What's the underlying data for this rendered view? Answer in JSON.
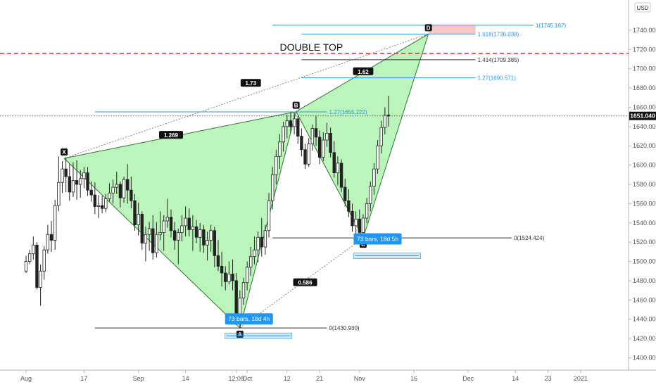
{
  "chart_data": {
    "type": "candlestick",
    "currency": "USD",
    "current_price": "1651.040",
    "price_ticks": [
      1400.0,
      1420.0,
      1440.0,
      1460.0,
      1480.0,
      1500.0,
      1520.0,
      1540.0,
      1560.0,
      1580.0,
      1600.0,
      1620.0,
      1640.0,
      1660.0,
      1680.0,
      1700.0,
      1720.0,
      1740.0
    ],
    "price_tick_labels": [
      "1400.000",
      "1420.000",
      "1440.000",
      "1460.000",
      "1480.000",
      "1500.000",
      "1520.000",
      "1540.000",
      "1560.000",
      "1580.000",
      "1600.000",
      "1620.000",
      "1640.000",
      "1660.000",
      "1680.000",
      "1700.000",
      "1720.000",
      "1740.000"
    ],
    "time_ticks": [
      {
        "label": "Aug",
        "day": 0
      },
      {
        "label": "17",
        "day": 16
      },
      {
        "label": "Sep",
        "day": 31
      },
      {
        "label": "14",
        "day": 44
      },
      {
        "label": "12:00",
        "day": 58
      },
      {
        "label": "Oct",
        "day": 61
      },
      {
        "label": "12",
        "day": 72
      },
      {
        "label": "21",
        "day": 81
      },
      {
        "label": "Nov",
        "day": 92
      },
      {
        "label": "16",
        "day": 107
      },
      {
        "label": "Dec",
        "day": 122
      },
      {
        "label": "14",
        "day": 135
      },
      {
        "label": "23",
        "day": 144
      },
      {
        "label": "2021",
        "day": 153
      }
    ],
    "annotation_title": "DOUBLE TOP",
    "double_top_price": 1716,
    "pattern_points": [
      {
        "name": "X",
        "day": 10.5,
        "price": 1607
      },
      {
        "name": "A",
        "day": 59,
        "price": 1431
      },
      {
        "name": "B",
        "day": 74.5,
        "price": 1655.5
      },
      {
        "name": "C",
        "day": 93,
        "price": 1524.4
      },
      {
        "name": "D",
        "day": 111,
        "price": 1736
      }
    ],
    "ratios": [
      {
        "label": "1.269",
        "day": 40,
        "price": 1631
      },
      {
        "label": "0.586",
        "day": 77,
        "price": 1478
      },
      {
        "label": "1.62",
        "day": 93,
        "price": 1697
      },
      {
        "label": "1.73",
        "day": 62,
        "price": 1685
      }
    ],
    "fib_levels": [
      {
        "label": "1(1745.167)",
        "price": 1745.167,
        "start": 68,
        "end": 140,
        "color": "blue"
      },
      {
        "label": "1.618(1736.038)",
        "price": 1736.038,
        "start": 76,
        "end": 124,
        "color": "blue"
      },
      {
        "label": "1.414(1709.385)",
        "price": 1709.385,
        "start": 76,
        "end": 124,
        "color": "dark"
      },
      {
        "label": "1.27(1690.571)",
        "price": 1690.571,
        "start": 76,
        "end": 124,
        "color": "blue"
      },
      {
        "label": "1.27(1655.222)",
        "price": 1655.222,
        "start": 19,
        "end": 83,
        "color": "blue"
      },
      {
        "label": "0(1524.424)",
        "price": 1524.424,
        "start": 68,
        "end": 134,
        "color": "dark"
      },
      {
        "label": "0(1430.930)",
        "price": 1430.93,
        "start": 19,
        "end": 83,
        "color": "dark"
      }
    ],
    "bar_boxes": [
      {
        "label": "73 bars, 18d 4h",
        "day": 61.5,
        "price": 1436
      },
      {
        "label": "73 bars, 18d 5h",
        "day": 97,
        "price": 1519
      }
    ],
    "candles": [
      [
        0,
        1490,
        1506,
        1488,
        1500
      ],
      [
        1,
        1500,
        1512,
        1497,
        1508
      ],
      [
        2,
        1508,
        1526,
        1502,
        1517
      ],
      [
        3,
        1517,
        1520,
        1471,
        1473
      ],
      [
        4,
        1473,
        1497,
        1454,
        1490
      ],
      [
        5,
        1490,
        1516,
        1481,
        1512
      ],
      [
        6,
        1512,
        1538,
        1508,
        1528
      ],
      [
        7,
        1528,
        1542,
        1510,
        1522
      ],
      [
        8,
        1522,
        1564,
        1512,
        1558
      ],
      [
        9,
        1558,
        1609,
        1552,
        1582
      ],
      [
        10,
        1582,
        1604,
        1571,
        1596
      ],
      [
        11,
        1596,
        1608,
        1572,
        1588
      ],
      [
        12,
        1588,
        1601,
        1563,
        1572
      ],
      [
        13,
        1572,
        1603,
        1567,
        1584
      ],
      [
        14,
        1584,
        1605,
        1564,
        1580
      ],
      [
        15,
        1580,
        1595,
        1566,
        1586
      ],
      [
        16,
        1586,
        1598,
        1576,
        1592
      ],
      [
        17,
        1592,
        1598,
        1568,
        1574
      ],
      [
        18,
        1574,
        1583,
        1562,
        1569
      ],
      [
        19,
        1569,
        1582,
        1549,
        1557
      ],
      [
        20,
        1557,
        1569,
        1545,
        1558
      ],
      [
        21,
        1558,
        1568,
        1550,
        1555
      ],
      [
        22,
        1555,
        1570,
        1551,
        1565
      ],
      [
        23,
        1565,
        1581,
        1562,
        1571
      ],
      [
        24,
        1571,
        1585,
        1560,
        1577
      ],
      [
        25,
        1577,
        1593,
        1570,
        1580
      ],
      [
        26,
        1580,
        1583,
        1556,
        1566
      ],
      [
        27,
        1566,
        1588,
        1561,
        1585
      ],
      [
        28,
        1585,
        1601,
        1560,
        1574
      ],
      [
        29,
        1574,
        1588,
        1555,
        1563
      ],
      [
        30,
        1563,
        1570,
        1532,
        1538
      ],
      [
        31,
        1538,
        1561,
        1527,
        1549
      ],
      [
        32,
        1549,
        1552,
        1512,
        1519
      ],
      [
        33,
        1519,
        1536,
        1500,
        1528
      ],
      [
        34,
        1528,
        1541,
        1511,
        1534
      ],
      [
        35,
        1534,
        1548,
        1502,
        1509
      ],
      [
        36,
        1509,
        1541,
        1504,
        1528
      ],
      [
        37,
        1528,
        1552,
        1522,
        1530
      ],
      [
        38,
        1530,
        1548,
        1511,
        1542
      ],
      [
        39,
        1542,
        1565,
        1535,
        1546
      ],
      [
        40,
        1546,
        1554,
        1525,
        1532
      ],
      [
        41,
        1532,
        1541,
        1512,
        1522
      ],
      [
        42,
        1522,
        1534,
        1497,
        1530
      ],
      [
        43,
        1530,
        1548,
        1521,
        1537
      ],
      [
        44,
        1537,
        1557,
        1526,
        1545
      ],
      [
        45,
        1545,
        1555,
        1526,
        1533
      ],
      [
        46,
        1533,
        1548,
        1511,
        1536
      ],
      [
        47,
        1536,
        1543,
        1519,
        1525
      ],
      [
        48,
        1525,
        1540,
        1510,
        1533
      ],
      [
        49,
        1533,
        1538,
        1509,
        1517
      ],
      [
        50,
        1517,
        1531,
        1501,
        1522
      ],
      [
        51,
        1522,
        1538,
        1510,
        1532
      ],
      [
        52,
        1532,
        1536,
        1494,
        1506
      ],
      [
        53,
        1506,
        1522,
        1490,
        1495
      ],
      [
        54,
        1495,
        1510,
        1474,
        1488
      ],
      [
        55,
        1488,
        1495,
        1470,
        1479
      ],
      [
        56,
        1479,
        1500,
        1476,
        1487
      ],
      [
        57,
        1487,
        1502,
        1470,
        1480
      ],
      [
        58,
        1480,
        1488,
        1434,
        1445
      ],
      [
        59,
        1445,
        1470,
        1431,
        1462
      ],
      [
        60,
        1462,
        1483,
        1455,
        1478
      ],
      [
        61,
        1478,
        1500,
        1470,
        1494
      ],
      [
        62,
        1494,
        1515,
        1485,
        1505
      ],
      [
        63,
        1505,
        1526,
        1497,
        1512
      ],
      [
        64,
        1512,
        1531,
        1499,
        1525
      ],
      [
        65,
        1525,
        1545,
        1505,
        1515
      ],
      [
        66,
        1515,
        1538,
        1507,
        1532
      ],
      [
        67,
        1532,
        1571,
        1525,
        1563
      ],
      [
        68,
        1563,
        1598,
        1554,
        1590
      ],
      [
        69,
        1590,
        1616,
        1580,
        1609
      ],
      [
        70,
        1609,
        1632,
        1596,
        1624
      ],
      [
        71,
        1624,
        1645,
        1614,
        1640
      ],
      [
        72,
        1640,
        1652,
        1628,
        1646
      ],
      [
        73,
        1646,
        1654,
        1633,
        1640
      ],
      [
        74,
        1640,
        1655,
        1632,
        1648
      ],
      [
        75,
        1648,
        1651,
        1622,
        1630
      ],
      [
        76,
        1630,
        1638,
        1609,
        1616
      ],
      [
        77,
        1616,
        1622,
        1596,
        1601
      ],
      [
        78,
        1601,
        1628,
        1598,
        1622
      ],
      [
        79,
        1622,
        1642,
        1615,
        1638
      ],
      [
        80,
        1638,
        1651,
        1620,
        1629
      ],
      [
        81,
        1629,
        1636,
        1601,
        1608
      ],
      [
        82,
        1608,
        1634,
        1604,
        1626
      ],
      [
        83,
        1626,
        1644,
        1619,
        1633
      ],
      [
        84,
        1633,
        1639,
        1608,
        1613
      ],
      [
        85,
        1613,
        1625,
        1587,
        1592
      ],
      [
        86,
        1592,
        1609,
        1579,
        1602
      ],
      [
        87,
        1602,
        1606,
        1572,
        1577
      ],
      [
        88,
        1577,
        1586,
        1557,
        1563
      ],
      [
        89,
        1563,
        1575,
        1546,
        1552
      ],
      [
        90,
        1552,
        1560,
        1531,
        1537
      ],
      [
        91,
        1537,
        1552,
        1527,
        1544
      ],
      [
        92,
        1544,
        1554,
        1525,
        1530
      ],
      [
        93,
        1530,
        1549,
        1525,
        1545
      ],
      [
        94,
        1545,
        1566,
        1540,
        1560
      ],
      [
        95,
        1560,
        1583,
        1552,
        1578
      ],
      [
        96,
        1578,
        1602,
        1569,
        1596
      ],
      [
        97,
        1596,
        1626,
        1591,
        1620
      ],
      [
        98,
        1620,
        1646,
        1612,
        1639
      ],
      [
        99,
        1639,
        1660,
        1632,
        1652
      ],
      [
        100,
        1652,
        1672,
        1640,
        1651
      ]
    ]
  }
}
